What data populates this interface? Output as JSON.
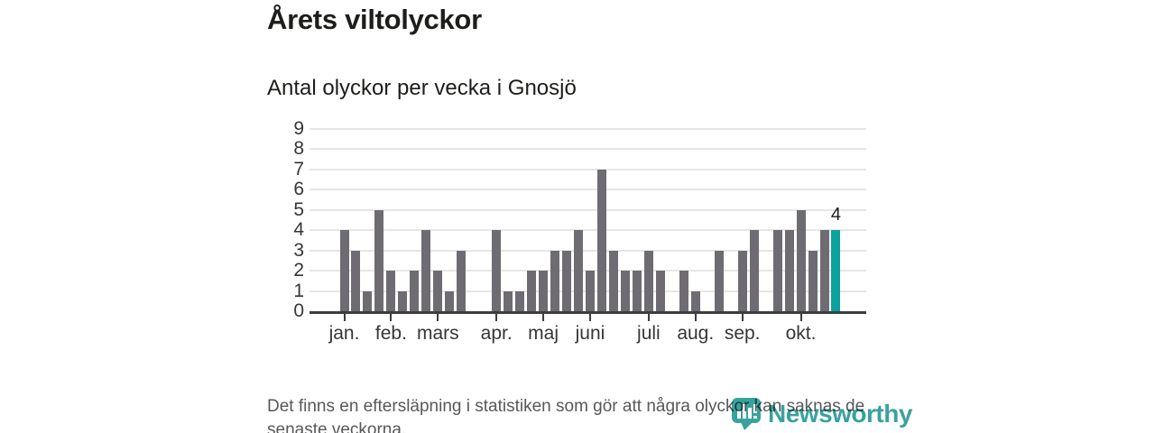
{
  "header": {
    "title": "Årets viltolyckor",
    "subtitle": "Antal olyckor per vecka i Gnosjö"
  },
  "chart_data": {
    "type": "bar",
    "x_unit": "week",
    "title": "Årets viltolyckor",
    "subtitle": "Antal olyckor per vecka i Gnosjö",
    "values": [
      4,
      3,
      1,
      5,
      2,
      1,
      2,
      4,
      2,
      1,
      3,
      0,
      0,
      4,
      1,
      1,
      2,
      2,
      3,
      3,
      4,
      2,
      7,
      3,
      2,
      2,
      3,
      2,
      0,
      2,
      1,
      0,
      3,
      0,
      3,
      4,
      0,
      4,
      4,
      5,
      3,
      4,
      4
    ],
    "highlight_index": 42,
    "highlight_value_label": "4",
    "months": [
      {
        "label": "jan.",
        "week_index": 0
      },
      {
        "label": "feb.",
        "week_index": 4
      },
      {
        "label": "mars",
        "week_index": 8
      },
      {
        "label": "apr.",
        "week_index": 13
      },
      {
        "label": "maj",
        "week_index": 17
      },
      {
        "label": "juni",
        "week_index": 21
      },
      {
        "label": "juli",
        "week_index": 26
      },
      {
        "label": "aug.",
        "week_index": 30
      },
      {
        "label": "sep.",
        "week_index": 34
      },
      {
        "label": "okt.",
        "week_index": 39
      }
    ],
    "ylim": [
      0,
      9
    ],
    "yticks": [
      0,
      1,
      2,
      3,
      4,
      5,
      6,
      7,
      8,
      9
    ],
    "grid": true,
    "legend": null,
    "colors": {
      "bar": "#6e6c72",
      "highlight": "#0aa29d",
      "grid": "#e6e6e6",
      "axis": "#3d3d40",
      "text": "#363636"
    }
  },
  "footnote": {
    "lines": [
      "Det finns en eftersläpning i statistiken som gör att några olyckor kan saknas de",
      "senaste veckorna."
    ]
  },
  "logo": {
    "name": "Newsworthy",
    "wordmark": "Newsworthy",
    "color": "#2e9d99"
  }
}
